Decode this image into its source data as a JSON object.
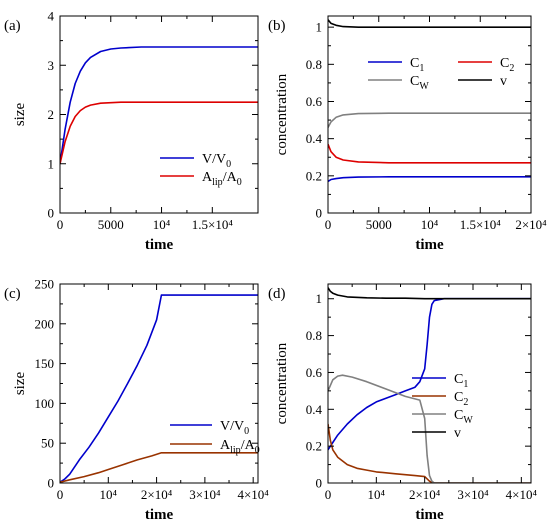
{
  "chart_data": [
    {
      "type": "line",
      "panel": "(a)",
      "xlabel": "time",
      "ylabel": "size",
      "xlim": [
        0,
        19500
      ],
      "ylim": [
        0,
        4
      ],
      "xticks": [
        {
          "value": 0,
          "label": "0"
        },
        {
          "value": 5000,
          "label": "5000"
        },
        {
          "value": 10000,
          "label": "10⁴"
        },
        {
          "value": 15000,
          "label": "1.5×10⁴"
        }
      ],
      "yticks": [
        {
          "value": 0,
          "label": "0"
        },
        {
          "value": 1,
          "label": "1"
        },
        {
          "value": 2,
          "label": "2"
        },
        {
          "value": 3,
          "label": "3"
        },
        {
          "value": 4,
          "label": "4"
        }
      ],
      "legend": "bottom-right",
      "series": [
        {
          "name": "V/V₀",
          "color": "#0000cc",
          "x": [
            0,
            500,
            1000,
            1500,
            2000,
            2500,
            3000,
            4000,
            5000,
            6000,
            8000,
            10000,
            15000,
            19500
          ],
          "y": [
            1.0,
            1.7,
            2.25,
            2.63,
            2.88,
            3.05,
            3.16,
            3.28,
            3.33,
            3.35,
            3.37,
            3.37,
            3.37,
            3.37
          ]
        },
        {
          "name": "A_lip/A₀",
          "color": "#dd0000",
          "x": [
            0,
            500,
            1000,
            1500,
            2000,
            2500,
            3000,
            4000,
            5000,
            6000,
            8000,
            10000,
            15000,
            19500
          ],
          "y": [
            1.0,
            1.45,
            1.76,
            1.96,
            2.08,
            2.15,
            2.19,
            2.23,
            2.24,
            2.25,
            2.25,
            2.25,
            2.25,
            2.25
          ]
        }
      ]
    },
    {
      "type": "line",
      "panel": "(b)",
      "xlabel": "time",
      "ylabel": "concentration",
      "xlim": [
        0,
        20000
      ],
      "ylim": [
        0,
        1.06
      ],
      "xticks": [
        {
          "value": 0,
          "label": "0"
        },
        {
          "value": 5000,
          "label": "5000"
        },
        {
          "value": 10000,
          "label": "10⁴"
        },
        {
          "value": 15000,
          "label": "1.5×10⁴"
        },
        {
          "value": 20000,
          "label": "2×10⁴"
        }
      ],
      "yticks": [
        {
          "value": 0,
          "label": "0"
        },
        {
          "value": 0.2,
          "label": "0.2"
        },
        {
          "value": 0.4,
          "label": "0.4"
        },
        {
          "value": 0.6,
          "label": "0.6"
        },
        {
          "value": 0.8,
          "label": "0.8"
        },
        {
          "value": 1,
          "label": "1"
        }
      ],
      "legend": "top-right",
      "series": [
        {
          "name": "C₁",
          "color": "#0000cc",
          "x": [
            0,
            300,
            800,
            1500,
            3000,
            6000,
            20000
          ],
          "y": [
            0.17,
            0.18,
            0.185,
            0.19,
            0.193,
            0.195,
            0.195
          ]
        },
        {
          "name": "C₂",
          "color": "#dd0000",
          "x": [
            0,
            300,
            800,
            1500,
            3000,
            6000,
            20000
          ],
          "y": [
            0.37,
            0.33,
            0.3,
            0.285,
            0.275,
            0.27,
            0.27
          ]
        },
        {
          "name": "C_W",
          "color": "#808080",
          "x": [
            0,
            300,
            800,
            1500,
            3000,
            6000,
            20000
          ],
          "y": [
            0.46,
            0.49,
            0.515,
            0.528,
            0.535,
            0.537,
            0.537
          ]
        },
        {
          "name": "v",
          "color": "#000000",
          "x": [
            0,
            300,
            800,
            1500,
            3000,
            6000,
            20000
          ],
          "y": [
            1.04,
            1.02,
            1.01,
            1.003,
            1.0,
            1.0,
            1.0
          ]
        }
      ]
    },
    {
      "type": "line",
      "panel": "(c)",
      "xlabel": "time",
      "ylabel": "size",
      "xlim": [
        0,
        41000
      ],
      "ylim": [
        0,
        250
      ],
      "xticks": [
        {
          "value": 0,
          "label": "0"
        },
        {
          "value": 10000,
          "label": "10⁴"
        },
        {
          "value": 20000,
          "label": "2×10⁴"
        },
        {
          "value": 30000,
          "label": "3×10⁴"
        },
        {
          "value": 40000,
          "label": "4×10⁴"
        }
      ],
      "yticks": [
        {
          "value": 0,
          "label": "0"
        },
        {
          "value": 50,
          "label": "50"
        },
        {
          "value": 100,
          "label": "100"
        },
        {
          "value": 150,
          "label": "150"
        },
        {
          "value": 200,
          "label": "200"
        },
        {
          "value": 250,
          "label": "250"
        }
      ],
      "legend": "bottom-right",
      "series": [
        {
          "name": "V/V₀",
          "color": "#0000cc",
          "x": [
            0,
            1000,
            2000,
            4000,
            6000,
            8000,
            10000,
            12000,
            14000,
            16000,
            18000,
            20000,
            21000,
            30000,
            41000
          ],
          "y": [
            1,
            5,
            11,
            29,
            45,
            63,
            83,
            103,
            125,
            148,
            173,
            205,
            236,
            236,
            236
          ]
        },
        {
          "name": "A_lip/A₀",
          "color": "#993300",
          "x": [
            0,
            2000,
            5000,
            8000,
            10000,
            13000,
            16000,
            19000,
            21000,
            30000,
            41000
          ],
          "y": [
            1,
            4,
            8,
            13,
            17,
            23,
            29,
            34,
            38,
            38,
            38
          ]
        }
      ]
    },
    {
      "type": "line",
      "panel": "(d)",
      "xlabel": "time",
      "ylabel": "concentration",
      "xlim": [
        0,
        42000
      ],
      "ylim": [
        0,
        1.08
      ],
      "xticks": [
        {
          "value": 0,
          "label": "0"
        },
        {
          "value": 10000,
          "label": "10⁴"
        },
        {
          "value": 20000,
          "label": "2×10⁴"
        },
        {
          "value": 30000,
          "label": "3×10⁴"
        },
        {
          "value": 40000,
          "label": "4×10⁴"
        }
      ],
      "yticks": [
        {
          "value": 0,
          "label": "0"
        },
        {
          "value": 0.2,
          "label": "0.2"
        },
        {
          "value": 0.4,
          "label": "0.4"
        },
        {
          "value": 0.6,
          "label": "0.6"
        },
        {
          "value": 0.8,
          "label": "0.8"
        },
        {
          "value": 1,
          "label": "1"
        }
      ],
      "legend": "center-right",
      "series": [
        {
          "name": "C₁",
          "color": "#0000cc",
          "x": [
            0,
            1000,
            2000,
            4000,
            6000,
            8000,
            10000,
            12000,
            14000,
            16000,
            18000,
            19000,
            20000,
            20500,
            21000,
            21500,
            22000,
            24000,
            42000
          ],
          "y": [
            0.18,
            0.22,
            0.26,
            0.32,
            0.37,
            0.41,
            0.44,
            0.46,
            0.48,
            0.5,
            0.52,
            0.55,
            0.62,
            0.75,
            0.9,
            0.97,
            0.99,
            1.0,
            1.0
          ]
        },
        {
          "name": "C₂",
          "color": "#993300",
          "x": [
            0,
            500,
            1000,
            2000,
            4000,
            6000,
            8000,
            10000,
            14000,
            18000,
            20000,
            21000,
            22000,
            42000
          ],
          "y": [
            0.32,
            0.23,
            0.18,
            0.14,
            0.1,
            0.08,
            0.07,
            0.06,
            0.05,
            0.04,
            0.035,
            0.01,
            0.0,
            0.0
          ]
        },
        {
          "name": "C_W",
          "color": "#808080",
          "x": [
            0,
            1000,
            2000,
            3000,
            5000,
            8000,
            12000,
            16000,
            19000,
            20000,
            20500,
            21000,
            21500,
            22000,
            42000
          ],
          "y": [
            0.5,
            0.56,
            0.58,
            0.585,
            0.575,
            0.55,
            0.51,
            0.47,
            0.45,
            0.35,
            0.15,
            0.04,
            0.01,
            0.0,
            0.0
          ]
        },
        {
          "name": "v",
          "color": "#000000",
          "x": [
            0,
            500,
            1000,
            2000,
            4000,
            8000,
            12000,
            16000,
            20000,
            21000,
            42000
          ],
          "y": [
            1.06,
            1.04,
            1.03,
            1.02,
            1.01,
            1.005,
            1.003,
            1.003,
            1.0,
            1.0,
            1.0
          ]
        }
      ]
    }
  ]
}
